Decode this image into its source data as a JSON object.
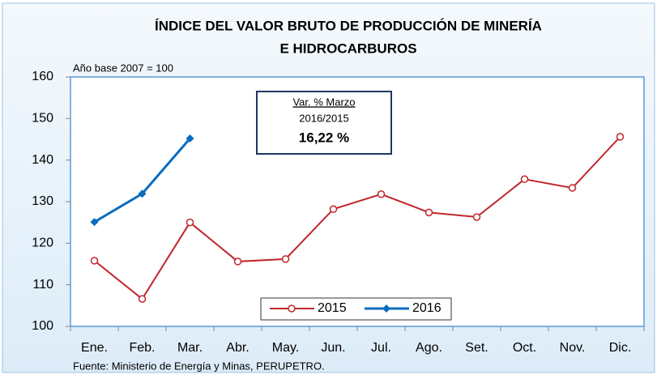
{
  "chart_data": {
    "type": "line",
    "title": [
      "ÍNDICE DEL VALOR BRUTO DE PRODUCCIÓN DE MINERÍA",
      "E HIDROCARBUROS"
    ],
    "subtitle": "Año base  2007  = 100",
    "annotation": [
      "Var. % Marzo",
      "2016/2015",
      "16,22 %"
    ],
    "source": "Fuente: Ministerio de Energía y Minas, PERUPETRO.",
    "categories": [
      "Ene.",
      "Feb.",
      "Mar.",
      "Abr.",
      "May.",
      "Jun.",
      "Jul.",
      "Ago.",
      "Set.",
      "Oct.",
      "Nov.",
      "Dic."
    ],
    "series": [
      {
        "name": "2015",
        "color": "#c0262b",
        "values": [
          115.8,
          106.6,
          125,
          115.6,
          116.2,
          128.2,
          131.8,
          127.4,
          126.3,
          135.4,
          133.3,
          145.6
        ]
      },
      {
        "name": "2016",
        "color": "#0a6cc0",
        "values": [
          125.1,
          131.9,
          145.2,
          null,
          null,
          null,
          null,
          null,
          null,
          null,
          null,
          null
        ]
      }
    ],
    "ylim": [
      100,
      160
    ],
    "yticks": [
      100,
      110,
      120,
      130,
      140,
      150,
      160
    ],
    "grid": false,
    "legend": "bottom"
  }
}
